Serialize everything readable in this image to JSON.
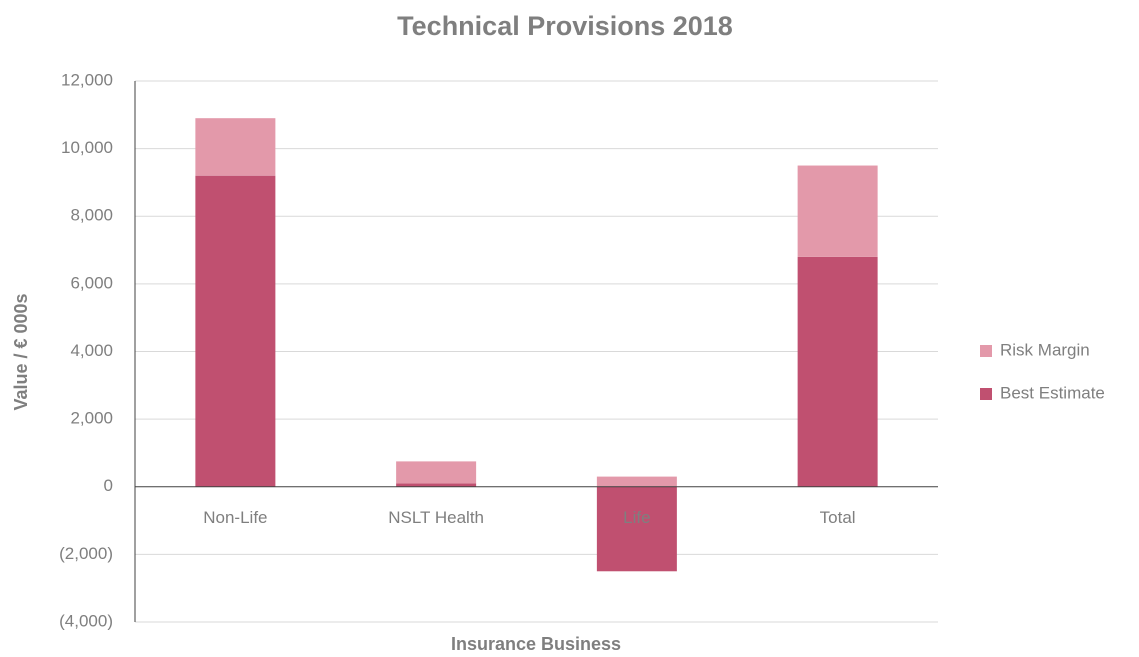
{
  "chart_data": {
    "type": "stacked_bar",
    "title": "Technical Provisions 2018",
    "x_label": "Insurance Business",
    "y_label": "Value / € 000s",
    "categories": [
      "Non-Life",
      "NSLT Health",
      "Life",
      "Total"
    ],
    "series": [
      {
        "name": "Best Estimate",
        "color": "#c05070",
        "values": [
          9200,
          100,
          -2500,
          6800
        ]
      },
      {
        "name": "Risk Margin",
        "color": "#e399aa",
        "values": [
          1700,
          650,
          300,
          2700
        ]
      }
    ],
    "ylim": [
      -4000,
      12000
    ],
    "yticks": [
      {
        "value": -4000,
        "label": "(4,000)"
      },
      {
        "value": -2000,
        "label": "(2,000)"
      },
      0,
      {
        "value": 2000,
        "label": "2,000"
      },
      {
        "value": 4000,
        "label": "4,000"
      },
      {
        "value": 6000,
        "label": "6,000"
      },
      {
        "value": 8000,
        "label": "8,000"
      },
      {
        "value": 10000,
        "label": "10,000"
      },
      {
        "value": 12000,
        "label": "12,000"
      }
    ],
    "grid": true,
    "legend": "right"
  }
}
